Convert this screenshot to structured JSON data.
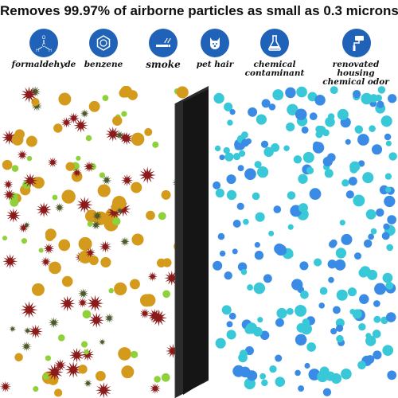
{
  "headline": "Removes 99.97% of airborne particles as small as 0.3 microns",
  "icons": [
    {
      "name": "formaldehyde-icon",
      "label": "formaldehyde"
    },
    {
      "name": "benzene-icon",
      "label": "benzene"
    },
    {
      "name": "smoke-icon",
      "label": "smoke"
    },
    {
      "name": "pet-hair-icon",
      "label": "pet hair"
    },
    {
      "name": "chemical-contaminant-icon",
      "label": "chemical contaminant"
    },
    {
      "name": "renovated-housing-icon",
      "label": "renovated housing chemical odor"
    }
  ],
  "colors": {
    "icon_blue": "#1f62b7",
    "filter_panel": "#1a1a1a",
    "particle_gold": "#d49a1c",
    "particle_green": "#8fd13a",
    "particle_red": "#8b1a1a",
    "particle_olive": "#4d5a2a",
    "clean_cyan": "#38c8d8",
    "clean_blue": "#3a8be6"
  }
}
